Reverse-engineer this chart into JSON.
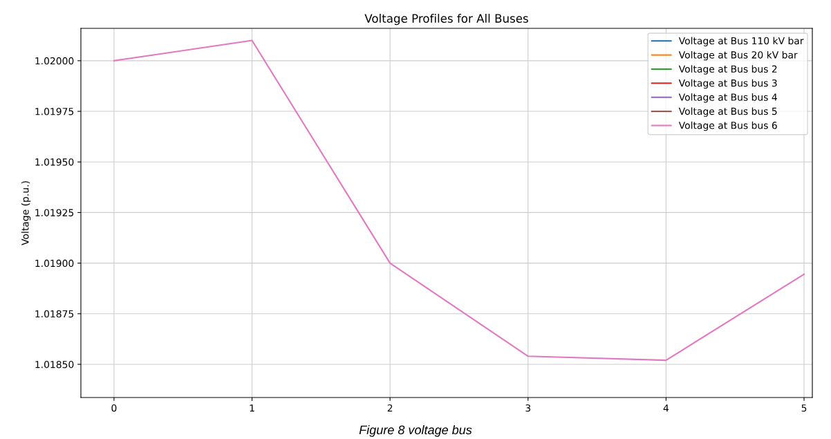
{
  "chart_data": {
    "type": "line",
    "title": "Voltage Profiles for All Buses",
    "ylabel": "Voltage (p.u.)",
    "x": [
      0,
      1,
      2,
      3,
      4,
      5
    ],
    "series": [
      {
        "name": "Voltage at Bus 110 kV bar",
        "color": "#1f77b4",
        "values": [
          null,
          null,
          null,
          null,
          null,
          null
        ]
      },
      {
        "name": "Voltage at Bus 20 kV bar",
        "color": "#ff7f0e",
        "values": [
          null,
          null,
          null,
          null,
          null,
          null
        ]
      },
      {
        "name": "Voltage at Bus bus 2",
        "color": "#2ca02c",
        "values": [
          null,
          null,
          null,
          null,
          null,
          null
        ]
      },
      {
        "name": "Voltage at Bus bus 3",
        "color": "#d62728",
        "values": [
          null,
          null,
          null,
          null,
          null,
          null
        ]
      },
      {
        "name": "Voltage at Bus bus 4",
        "color": "#9467bd",
        "values": [
          null,
          null,
          null,
          null,
          null,
          null
        ]
      },
      {
        "name": "Voltage at Bus bus 5",
        "color": "#8c564b",
        "values": [
          null,
          null,
          null,
          null,
          null,
          null
        ]
      },
      {
        "name": "Voltage at Bus bus 6",
        "color": "#e377c2",
        "values": [
          1.02,
          1.0201,
          1.019,
          1.01854,
          1.01852,
          1.018945
        ]
      }
    ],
    "xlim": [
      -0.24,
      5.06
    ],
    "xticks": [
      0,
      1,
      2,
      3,
      4,
      5
    ],
    "ylim": [
      1.018336,
      1.02016
    ],
    "yticks": [
      {
        "value": 1.0185,
        "label": "1.01850"
      },
      {
        "value": 1.01875,
        "label": "1.01875"
      },
      {
        "value": 1.019,
        "label": "1.01900"
      },
      {
        "value": 1.01925,
        "label": "1.01925"
      },
      {
        "value": 1.0195,
        "label": "1.01950"
      },
      {
        "value": 1.01975,
        "label": "1.01975"
      },
      {
        "value": 1.02,
        "label": "1.02000"
      }
    ],
    "grid": true,
    "legend": "top right",
    "marker": "none",
    "line_style": "solid",
    "annotations": [
      "Figure 8 voltage bus"
    ]
  }
}
